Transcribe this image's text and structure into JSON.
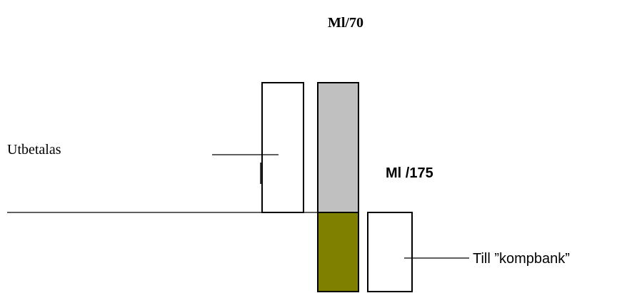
{
  "labels": {
    "top": "Ml/70",
    "middle": "Ml /175",
    "left": "Utbetalas",
    "right": "Till ”kompbank”"
  },
  "colors": {
    "stroke": "#000000",
    "gray_bar": "#c0c0c0",
    "olive_bar": "#808000",
    "white_box": "#ffffff"
  }
}
